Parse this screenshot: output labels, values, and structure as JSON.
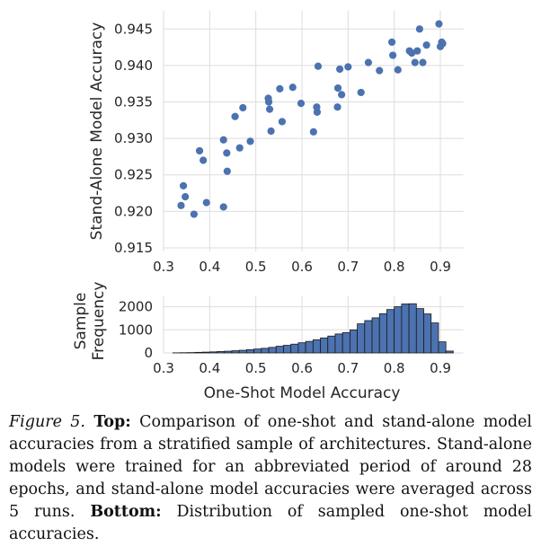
{
  "chart_data": [
    {
      "type": "scatter",
      "title": "",
      "xlabel": "",
      "ylabel": "Stand-Alone Model Accuracy",
      "xlim": [
        0.3,
        0.95
      ],
      "ylim": [
        0.9145,
        0.9475
      ],
      "grid": true,
      "color": "#4c72b0",
      "x_ticks": [
        "0.3",
        "0.4",
        "0.5",
        "0.6",
        "0.7",
        "0.8",
        "0.9"
      ],
      "y_ticks": [
        "0.915",
        "0.920",
        "0.925",
        "0.930",
        "0.935",
        "0.940",
        "0.945"
      ],
      "points": [
        [
          0.338,
          0.9208
        ],
        [
          0.343,
          0.9235
        ],
        [
          0.347,
          0.922
        ],
        [
          0.366,
          0.9196
        ],
        [
          0.378,
          0.9283
        ],
        [
          0.386,
          0.927
        ],
        [
          0.393,
          0.9212
        ],
        [
          0.43,
          0.9206
        ],
        [
          0.43,
          0.9298
        ],
        [
          0.437,
          0.928
        ],
        [
          0.438,
          0.9255
        ],
        [
          0.455,
          0.933
        ],
        [
          0.465,
          0.9287
        ],
        [
          0.472,
          0.9342
        ],
        [
          0.488,
          0.9296
        ],
        [
          0.527,
          0.9355
        ],
        [
          0.528,
          0.935
        ],
        [
          0.53,
          0.934
        ],
        [
          0.533,
          0.931
        ],
        [
          0.552,
          0.9368
        ],
        [
          0.557,
          0.9323
        ],
        [
          0.58,
          0.937
        ],
        [
          0.598,
          0.9348
        ],
        [
          0.625,
          0.9309
        ],
        [
          0.632,
          0.9343
        ],
        [
          0.633,
          0.9336
        ],
        [
          0.635,
          0.9399
        ],
        [
          0.677,
          0.9343
        ],
        [
          0.678,
          0.9369
        ],
        [
          0.682,
          0.9395
        ],
        [
          0.686,
          0.936
        ],
        [
          0.7,
          0.9398
        ],
        [
          0.728,
          0.9363
        ],
        [
          0.744,
          0.9404
        ],
        [
          0.768,
          0.9393
        ],
        [
          0.795,
          0.9432
        ],
        [
          0.797,
          0.9414
        ],
        [
          0.808,
          0.9394
        ],
        [
          0.833,
          0.942
        ],
        [
          0.838,
          0.9417
        ],
        [
          0.845,
          0.9404
        ],
        [
          0.85,
          0.942
        ],
        [
          0.855,
          0.945
        ],
        [
          0.862,
          0.9404
        ],
        [
          0.87,
          0.9428
        ],
        [
          0.897,
          0.9457
        ],
        [
          0.9,
          0.9426
        ],
        [
          0.903,
          0.9432
        ],
        [
          0.905,
          0.943
        ]
      ]
    },
    {
      "type": "bar",
      "title": "",
      "xlabel": "One-Shot Model Accuracy",
      "ylabel": "Sample Frequency",
      "ylabel_lines": [
        "Sample",
        "Frequency"
      ],
      "xlim": [
        0.3,
        0.95
      ],
      "ylim": [
        0,
        2450
      ],
      "grid": true,
      "color": "#4c72b0",
      "x_ticks": [
        "0.3",
        "0.4",
        "0.5",
        "0.6",
        "0.7",
        "0.8",
        "0.9"
      ],
      "y_ticks": [
        "0",
        "1000",
        "2000"
      ],
      "bin_start": 0.32,
      "bin_width": 0.016,
      "values": [
        5,
        10,
        15,
        25,
        35,
        45,
        60,
        75,
        95,
        115,
        140,
        170,
        200,
        240,
        290,
        330,
        380,
        440,
        500,
        570,
        650,
        730,
        820,
        880,
        1000,
        1260,
        1400,
        1520,
        1700,
        1880,
        2000,
        2120,
        2130,
        1920,
        1690,
        1300,
        480,
        80
      ]
    }
  ],
  "caption": {
    "label": "Figure 5.",
    "top_head": "Top:",
    "top_text": "Comparison of one-shot and stand-alone model accuracies from a stratified sample of architectures. Stand-alone models were trained for an abbreviated period of around 28 epochs, and stand-alone model accuracies were averaged across 5 runs.",
    "bottom_head": "Bottom:",
    "bottom_text": "Distribution of sampled one-shot model accuracies."
  }
}
